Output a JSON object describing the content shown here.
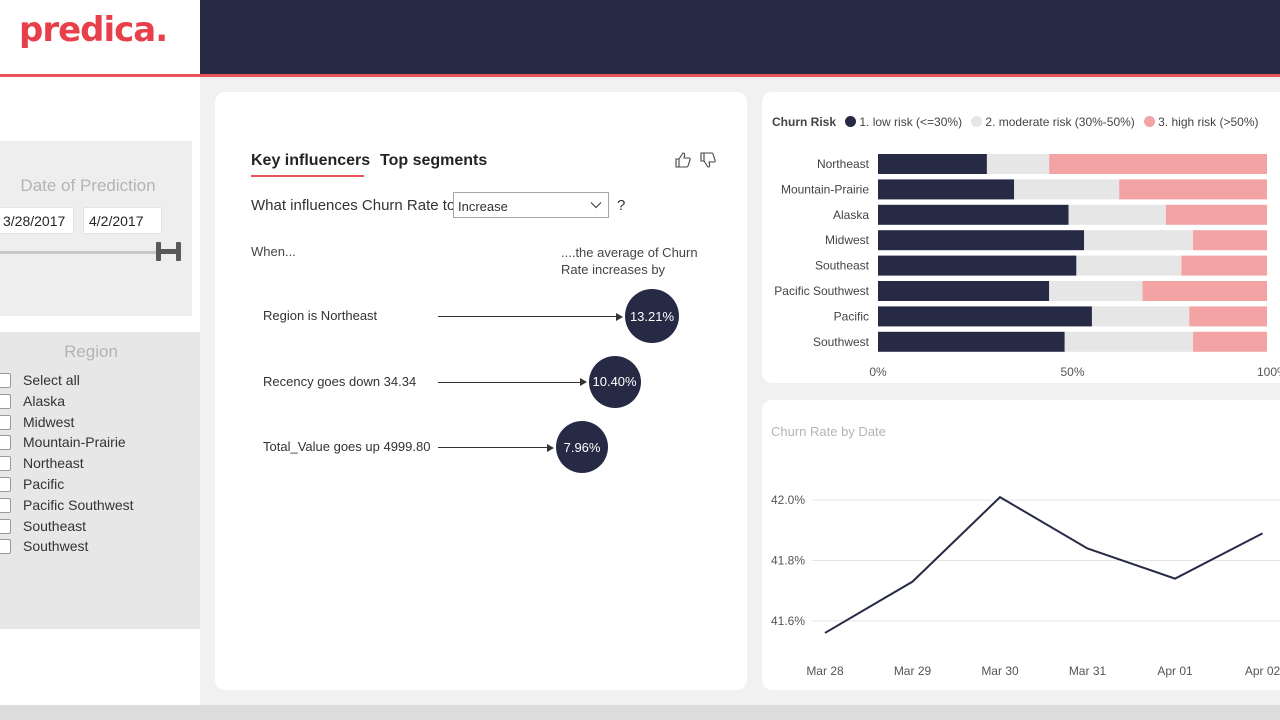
{
  "brand": {
    "name": "predica",
    "dot": "."
  },
  "filters": {
    "date_title": "Date of Prediction",
    "date_start": "3/28/2017",
    "date_end": "4/2/2017",
    "region_title": "Region",
    "regions": [
      "Select all",
      "Alaska",
      "Midwest",
      "Mountain-Prairie",
      "Northeast",
      "Pacific",
      "Pacific Southwest",
      "Southeast",
      "Southwest"
    ]
  },
  "key_influencers": {
    "tabs": [
      "Key influencers",
      "Top segments"
    ],
    "question_prefix": "What influences Churn Rate to",
    "dropdown_value": "Increase",
    "question_suffix": "?",
    "when_label": "When...",
    "avg_label": "....the average of Churn Rate increases by",
    "influencers": [
      {
        "label": "Region is Northeast",
        "value": "13.21%",
        "numeric": 13.21
      },
      {
        "label": "Recency goes down 34.34",
        "value": "10.40%",
        "numeric": 10.4
      },
      {
        "label": "Total_Value goes up 4999.80",
        "value": "7.96%",
        "numeric": 7.96
      }
    ]
  },
  "colors": {
    "navy": "#262a45",
    "moderate": "#e6e6e6",
    "high": "#f4a3a5",
    "accent": "#e8545a"
  },
  "chart_data": [
    {
      "type": "bar",
      "orientation": "horizontal",
      "stacked": "100%",
      "legend_title": "Churn Risk",
      "categories": [
        "Northeast",
        "Mountain-Prairie",
        "Alaska",
        "Midwest",
        "Southeast",
        "Pacific Southwest",
        "Pacific",
        "Southwest"
      ],
      "series": [
        {
          "name": "1. low risk (<=30%)",
          "values": [
            28,
            35,
            49,
            53,
            51,
            44,
            55,
            48
          ]
        },
        {
          "name": "2. moderate risk (30%-50%)",
          "values": [
            16,
            27,
            25,
            28,
            27,
            24,
            25,
            33
          ]
        },
        {
          "name": "3. high risk (>50%)",
          "values": [
            56,
            38,
            26,
            19,
            22,
            32,
            20,
            19
          ]
        }
      ],
      "xticks": [
        "0%",
        "50%",
        "100%"
      ],
      "xlim": [
        0,
        100
      ],
      "legend": "top-left"
    },
    {
      "type": "line",
      "title": "Churn Rate by Date",
      "x": [
        "Mar 28",
        "Mar 29",
        "Mar 30",
        "Mar 31",
        "Apr 01",
        "Apr 02"
      ],
      "values": [
        41.56,
        41.73,
        42.01,
        41.84,
        41.74,
        41.89
      ],
      "yticks": [
        "42.0%",
        "41.8%",
        "41.6%"
      ],
      "ytick_values": [
        42.0,
        41.8,
        41.6
      ],
      "ylim": [
        41.52,
        42.1
      ],
      "grid": true
    }
  ]
}
